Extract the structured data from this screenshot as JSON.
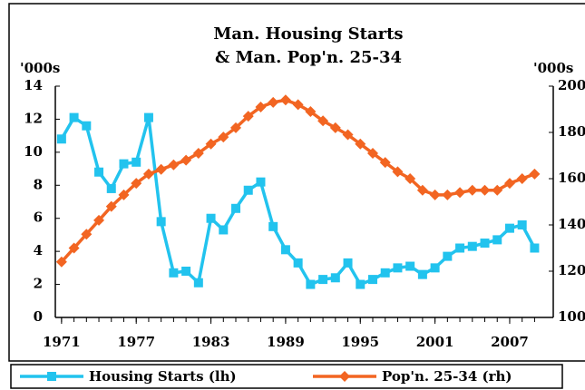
{
  "chart_data": {
    "type": "line",
    "title_lines": [
      "Man. Housing Starts",
      "& Man. Pop'n. 25-34"
    ],
    "ylabel": "'000s",
    "y2label": "'000s",
    "x": [
      1971,
      1972,
      1973,
      1974,
      1975,
      1976,
      1977,
      1978,
      1979,
      1980,
      1981,
      1982,
      1983,
      1984,
      1985,
      1986,
      1987,
      1988,
      1989,
      1990,
      1991,
      1992,
      1993,
      1994,
      1995,
      1996,
      1997,
      1998,
      1999,
      2000,
      2001,
      2002,
      2003,
      2004,
      2005,
      2006,
      2007,
      2008,
      2009
    ],
    "series": [
      {
        "name": "Housing Starts (lh)",
        "color": "#22c3ee",
        "marker": "square",
        "axis": "y",
        "values": [
          10.8,
          12.1,
          11.6,
          8.8,
          7.8,
          9.3,
          9.4,
          12.1,
          5.8,
          2.7,
          2.8,
          2.1,
          6.0,
          5.3,
          6.6,
          7.7,
          8.2,
          5.5,
          4.1,
          3.3,
          2.0,
          2.3,
          2.4,
          3.3,
          2.0,
          2.3,
          2.7,
          3.0,
          3.1,
          2.6,
          3.0,
          3.7,
          4.2,
          4.3,
          4.5,
          4.7,
          5.4,
          5.6,
          4.2
        ]
      },
      {
        "name": "Pop'n. 25-34 (rh)",
        "color": "#f26522",
        "marker": "diamond",
        "axis": "y2",
        "values": [
          124,
          130,
          136,
          142,
          148,
          153,
          158,
          162,
          164,
          166,
          168,
          171,
          175,
          178,
          182,
          187,
          191,
          193,
          194,
          192,
          189,
          185,
          182,
          179,
          175,
          171,
          167,
          163,
          160,
          155,
          153,
          153,
          154,
          155,
          155,
          155,
          158,
          160,
          162
        ]
      }
    ],
    "xlim": [
      1970.5,
      2010.5
    ],
    "xticks": [
      1971,
      1977,
      1983,
      1989,
      1995,
      2001,
      2007
    ],
    "ylim": [
      0,
      14
    ],
    "yticks": [
      0,
      2,
      4,
      6,
      8,
      10,
      12,
      14
    ],
    "y2lim": [
      100,
      200
    ],
    "y2ticks": [
      100,
      120,
      140,
      160,
      180,
      200
    ],
    "legend": "bottom"
  }
}
